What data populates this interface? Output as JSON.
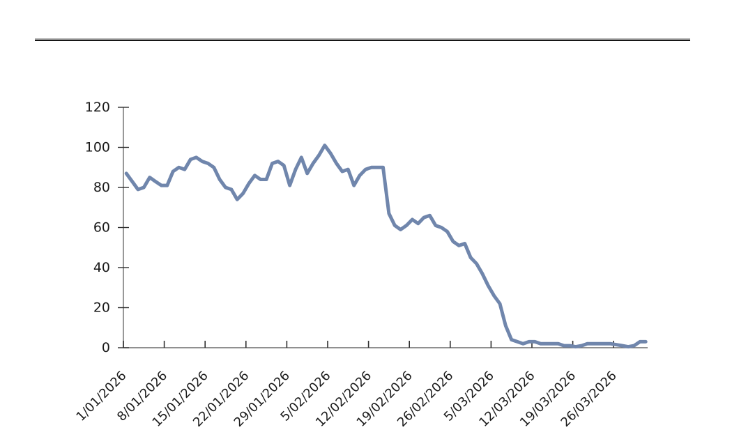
{
  "page": {
    "background_color": "#ffffff",
    "divider_color": "#161616"
  },
  "chart_data": {
    "type": "line",
    "title": "",
    "xlabel": "",
    "ylabel": "",
    "legend": "none",
    "grid": false,
    "ylim": [
      0,
      120
    ],
    "y_ticks": [
      0,
      20,
      40,
      60,
      80,
      100,
      120
    ],
    "x_tick_labels": [
      "1/01/2026",
      "8/01/2026",
      "15/01/2026",
      "22/01/2026",
      "29/01/2026",
      "5/02/2026",
      "12/02/2026",
      "19/02/2026",
      "26/02/2026",
      "5/03/2026",
      "12/03/2026",
      "19/03/2026",
      "26/03/2026"
    ],
    "line_color": "#7086AC",
    "axis_color": "#6b6b6b",
    "tick_color": "#2e2e2e",
    "label_color": "#1a1a1a",
    "x": [
      "1/01/2026",
      "2/01/2026",
      "3/01/2026",
      "4/01/2026",
      "5/01/2026",
      "6/01/2026",
      "7/01/2026",
      "8/01/2026",
      "9/01/2026",
      "10/01/2026",
      "11/01/2026",
      "12/01/2026",
      "13/01/2026",
      "14/01/2026",
      "15/01/2026",
      "16/01/2026",
      "17/01/2026",
      "18/01/2026",
      "19/01/2026",
      "20/01/2026",
      "21/01/2026",
      "22/01/2026",
      "23/01/2026",
      "24/01/2026",
      "25/01/2026",
      "26/01/2026",
      "27/01/2026",
      "28/01/2026",
      "29/01/2026",
      "30/01/2026",
      "31/01/2026",
      "1/02/2026",
      "2/02/2026",
      "3/02/2026",
      "4/02/2026",
      "5/02/2026",
      "6/02/2026",
      "7/02/2026",
      "8/02/2026",
      "9/02/2026",
      "10/02/2026",
      "11/02/2026",
      "12/02/2026",
      "13/02/2026",
      "14/02/2026",
      "15/02/2026",
      "16/02/2026",
      "17/02/2026",
      "18/02/2026",
      "19/02/2026",
      "20/02/2026",
      "21/02/2026",
      "22/02/2026",
      "23/02/2026",
      "24/02/2026",
      "25/02/2026",
      "26/02/2026",
      "27/02/2026",
      "28/02/2026",
      "1/03/2026",
      "2/03/2026",
      "3/03/2026",
      "4/03/2026",
      "5/03/2026",
      "6/03/2026",
      "7/03/2026",
      "8/03/2026",
      "9/03/2026",
      "10/03/2026",
      "11/03/2026",
      "12/03/2026",
      "13/03/2026",
      "14/03/2026",
      "15/03/2026",
      "16/03/2026",
      "17/03/2026",
      "18/03/2026",
      "19/03/2026",
      "20/03/2026",
      "21/03/2026",
      "22/03/2026",
      "23/03/2026",
      "24/03/2026",
      "25/03/2026",
      "26/03/2026",
      "27/03/2026",
      "28/03/2026",
      "29/03/2026",
      "30/03/2026",
      "31/03/2026"
    ],
    "values": [
      87,
      83,
      79,
      80,
      85,
      83,
      81,
      81,
      88,
      90,
      89,
      94,
      95,
      93,
      92,
      90,
      84,
      80,
      79,
      74,
      77,
      82,
      86,
      84,
      84,
      92,
      93,
      91,
      81,
      89,
      95,
      87,
      92,
      96,
      101,
      97,
      92,
      88,
      89,
      81,
      86,
      89,
      90,
      90,
      90,
      67,
      61,
      59,
      61,
      64,
      62,
      65,
      66,
      61,
      60,
      58,
      53,
      51,
      52,
      45,
      42,
      37,
      31,
      26,
      22,
      11,
      4,
      3,
      2,
      3,
      3,
      2,
      2,
      2,
      2,
      1,
      1,
      0.5,
      1,
      2,
      2,
      2,
      2,
      2,
      1.5,
      1,
      0.5,
      1,
      3,
      3
    ]
  }
}
